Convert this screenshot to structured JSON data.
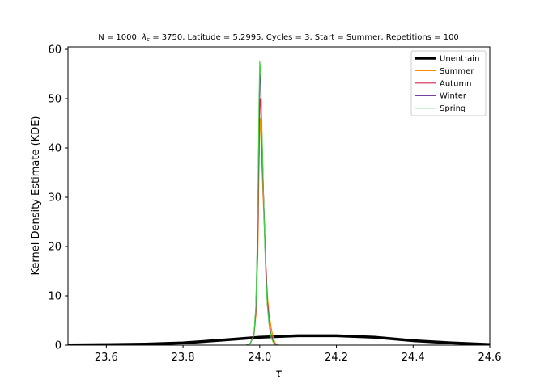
{
  "chart_data": {
    "type": "line",
    "title": "N = 1000, λc = 3750, Latitude = 5.2995, Cycles = 3, Start = Summer, Repetitions = 100",
    "title_parts": {
      "prefix": "N = 1000, ",
      "lambda_symbol": "λ",
      "lambda_sub": "c",
      "suffix": " = 3750, Latitude = 5.2995, Cycles = 3, Start = Summer, Repetitions = 100"
    },
    "xlabel": "τ",
    "ylabel": "Kernel Density Estimate (KDE)",
    "xlim": [
      23.5,
      24.6
    ],
    "ylim": [
      0,
      60.5
    ],
    "xticks": [
      23.6,
      23.8,
      24.0,
      24.2,
      24.4,
      24.6
    ],
    "xtick_labels": [
      "23.6",
      "23.8",
      "24.0",
      "24.2",
      "24.4",
      "24.6"
    ],
    "yticks": [
      0,
      10,
      20,
      30,
      40,
      50,
      60
    ],
    "ytick_labels": [
      "0",
      "10",
      "20",
      "30",
      "40",
      "50",
      "60"
    ],
    "grid": false,
    "legend_position": "top-right",
    "series": [
      {
        "name": "Unentrain",
        "color": "#000000",
        "x": [
          23.5,
          23.6,
          23.7,
          23.8,
          23.9,
          24.0,
          24.1,
          24.2,
          24.3,
          24.4,
          24.5,
          24.6
        ],
        "y": [
          0.05,
          0.1,
          0.2,
          0.45,
          1.0,
          1.6,
          1.9,
          1.9,
          1.6,
          0.9,
          0.45,
          0.12
        ]
      },
      {
        "name": "Summer",
        "color": "#ff8c00",
        "x": [
          23.965,
          23.975,
          23.985,
          23.99,
          23.995,
          23.998,
          24.0,
          24.002,
          24.005,
          24.01,
          24.015,
          24.02,
          24.025,
          24.03,
          24.035,
          24.04,
          24.045,
          24.05
        ],
        "y": [
          0,
          0.3,
          2.0,
          6.0,
          18.0,
          35.0,
          43.0,
          46.0,
          38.0,
          28.0,
          18.0,
          10.0,
          6.0,
          3.5,
          1.5,
          0.5,
          0.1,
          0
        ]
      },
      {
        "name": "Autumn",
        "color": "#d62750",
        "x": [
          23.965,
          23.975,
          23.985,
          23.99,
          23.995,
          23.998,
          24.0,
          24.002,
          24.005,
          24.01,
          24.015,
          24.02,
          24.025,
          24.03,
          24.035,
          24.04,
          24.045
        ],
        "y": [
          0,
          0.3,
          2.0,
          7.0,
          22.0,
          40.0,
          49.0,
          50.0,
          42.0,
          30.0,
          18.0,
          9.0,
          4.5,
          2.0,
          0.8,
          0.2,
          0
        ]
      },
      {
        "name": "Winter",
        "color": "#4b0082",
        "x": [
          23.965,
          23.975,
          23.985,
          23.99,
          23.995,
          23.998,
          24.0,
          24.002,
          24.005,
          24.01,
          24.015,
          24.02,
          24.025,
          24.03,
          24.035,
          24.04,
          24.045
        ],
        "y": [
          0,
          0.3,
          2.0,
          7.5,
          24.0,
          44.0,
          54.0,
          55.0,
          45.0,
          30.0,
          17.0,
          8.5,
          4.0,
          1.8,
          0.7,
          0.2,
          0
        ]
      },
      {
        "name": "Spring",
        "color": "#44d144",
        "x": [
          23.965,
          23.975,
          23.985,
          23.99,
          23.995,
          23.998,
          24.0,
          24.002,
          24.005,
          24.01,
          24.015,
          24.02,
          24.025,
          24.03,
          24.035,
          24.04,
          24.045
        ],
        "y": [
          0,
          0.3,
          2.0,
          8.0,
          26.0,
          48.0,
          57.5,
          56.0,
          46.0,
          30.0,
          16.0,
          8.0,
          3.8,
          1.6,
          0.6,
          0.2,
          0
        ]
      }
    ]
  }
}
